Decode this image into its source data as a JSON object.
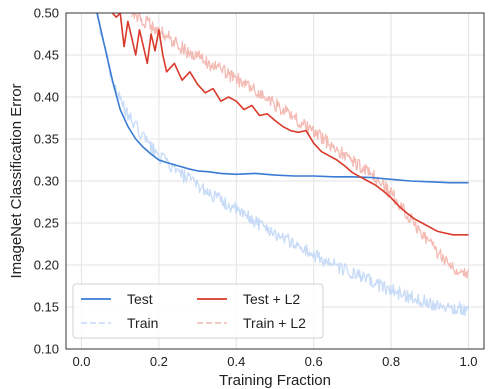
{
  "chart_data": {
    "type": "line",
    "xlabel": "Training Fraction",
    "ylabel": "ImageNet Classification Error",
    "xlim": [
      -0.04,
      1.04
    ],
    "ylim": [
      0.1,
      0.5
    ],
    "x_ticks": [
      "0.0",
      "0.2",
      "0.4",
      "0.6",
      "0.8",
      "1.0"
    ],
    "x_tick_values": [
      0.0,
      0.2,
      0.4,
      0.6,
      0.8,
      1.0
    ],
    "y_ticks": [
      "0.10",
      "0.15",
      "0.20",
      "0.25",
      "0.30",
      "0.35",
      "0.40",
      "0.45",
      "0.50"
    ],
    "y_tick_values": [
      0.1,
      0.15,
      0.2,
      0.25,
      0.3,
      0.35,
      0.4,
      0.45,
      0.5
    ],
    "grid": true,
    "legend_position": "bottom-left",
    "series": [
      {
        "name": "Test",
        "color": "#3a7bd5",
        "style": "solid",
        "x": [
          0.04,
          0.06,
          0.08,
          0.1,
          0.12,
          0.14,
          0.16,
          0.18,
          0.2,
          0.22,
          0.25,
          0.28,
          0.3,
          0.33,
          0.36,
          0.4,
          0.45,
          0.5,
          0.55,
          0.6,
          0.65,
          0.7,
          0.75,
          0.8,
          0.85,
          0.9,
          0.95,
          1.0
        ],
        "y": [
          0.5,
          0.46,
          0.42,
          0.385,
          0.365,
          0.35,
          0.34,
          0.332,
          0.325,
          0.322,
          0.318,
          0.314,
          0.312,
          0.311,
          0.309,
          0.308,
          0.309,
          0.307,
          0.306,
          0.306,
          0.305,
          0.305,
          0.304,
          0.302,
          0.3,
          0.299,
          0.298,
          0.298
        ]
      },
      {
        "name": "Train",
        "color": "#c5d9f7",
        "style": "dashed",
        "x": [
          0.04,
          0.06,
          0.08,
          0.1,
          0.12,
          0.14,
          0.16,
          0.18,
          0.2,
          0.22,
          0.25,
          0.3,
          0.35,
          0.4,
          0.45,
          0.5,
          0.55,
          0.6,
          0.65,
          0.7,
          0.75,
          0.8,
          0.85,
          0.9,
          0.95,
          1.0
        ],
        "y": [
          0.5,
          0.46,
          0.42,
          0.395,
          0.378,
          0.365,
          0.352,
          0.34,
          0.33,
          0.322,
          0.31,
          0.295,
          0.28,
          0.265,
          0.252,
          0.238,
          0.225,
          0.212,
          0.2,
          0.19,
          0.18,
          0.17,
          0.162,
          0.155,
          0.15,
          0.146
        ]
      },
      {
        "name": "Test + L2",
        "color": "#d93a2b",
        "style": "solid",
        "x": [
          0.08,
          0.09,
          0.1,
          0.11,
          0.12,
          0.13,
          0.14,
          0.15,
          0.16,
          0.17,
          0.18,
          0.19,
          0.2,
          0.21,
          0.22,
          0.24,
          0.26,
          0.28,
          0.3,
          0.32,
          0.34,
          0.36,
          0.38,
          0.4,
          0.42,
          0.44,
          0.46,
          0.48,
          0.5,
          0.52,
          0.54,
          0.56,
          0.58,
          0.6,
          0.62,
          0.64,
          0.66,
          0.68,
          0.7,
          0.72,
          0.74,
          0.76,
          0.78,
          0.8,
          0.82,
          0.84,
          0.86,
          0.88,
          0.9,
          0.92,
          0.94,
          0.96,
          0.98,
          1.0
        ],
        "y": [
          0.5,
          0.495,
          0.5,
          0.46,
          0.49,
          0.47,
          0.45,
          0.48,
          0.46,
          0.44,
          0.475,
          0.455,
          0.48,
          0.45,
          0.43,
          0.44,
          0.42,
          0.43,
          0.415,
          0.405,
          0.41,
          0.395,
          0.4,
          0.395,
          0.385,
          0.39,
          0.378,
          0.38,
          0.372,
          0.365,
          0.36,
          0.358,
          0.36,
          0.345,
          0.335,
          0.33,
          0.325,
          0.318,
          0.31,
          0.305,
          0.3,
          0.295,
          0.288,
          0.28,
          0.27,
          0.262,
          0.255,
          0.25,
          0.245,
          0.24,
          0.238,
          0.236,
          0.236,
          0.236
        ]
      },
      {
        "name": "Train + L2",
        "color": "#f3b7b0",
        "style": "dashed",
        "x": [
          0.13,
          0.15,
          0.18,
          0.2,
          0.22,
          0.25,
          0.28,
          0.3,
          0.33,
          0.36,
          0.4,
          0.44,
          0.48,
          0.52,
          0.56,
          0.6,
          0.64,
          0.68,
          0.72,
          0.76,
          0.8,
          0.84,
          0.88,
          0.92,
          0.96,
          1.0
        ],
        "y": [
          0.5,
          0.495,
          0.485,
          0.478,
          0.472,
          0.462,
          0.452,
          0.448,
          0.44,
          0.432,
          0.422,
          0.41,
          0.398,
          0.385,
          0.372,
          0.358,
          0.345,
          0.33,
          0.318,
          0.303,
          0.285,
          0.262,
          0.238,
          0.215,
          0.198,
          0.19
        ]
      }
    ]
  }
}
